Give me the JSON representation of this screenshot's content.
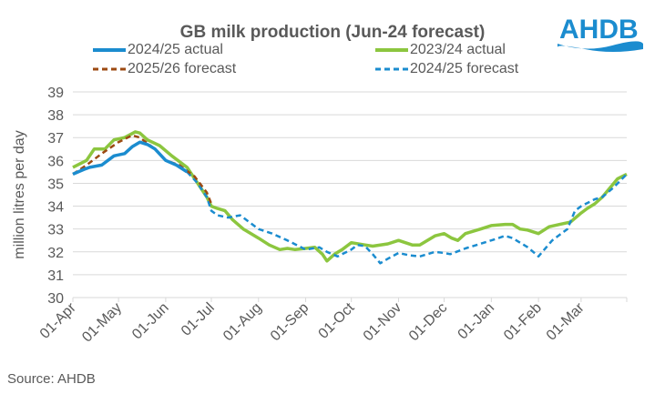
{
  "logo": {
    "text": "AHDB",
    "color": "#1b8ccf"
  },
  "source": "Source: AHDB",
  "chart_data": {
    "type": "line",
    "title": "GB milk production (Jun-24 forecast)",
    "ylabel": "million litres per day",
    "xlabel": "",
    "ylim": [
      30,
      39
    ],
    "yticks": [
      30,
      31,
      32,
      33,
      34,
      35,
      36,
      37,
      38,
      39
    ],
    "xticks": [
      "01-Apr",
      "01-May",
      "01-Jun",
      "01-Jul",
      "01-Aug",
      "01-Sep",
      "01-Oct",
      "01-Nov",
      "01-Dec",
      "01-Jan",
      "01-Feb",
      "01-Mar"
    ],
    "grid": "horizontal",
    "legend": "top",
    "series": [
      {
        "name": "2024/25 actual",
        "color": "#1b8ccf",
        "style": "solid",
        "points": [
          [
            "01-Apr",
            35.4
          ],
          [
            "08-Apr",
            35.6
          ],
          [
            "12-Apr",
            35.7
          ],
          [
            "20-Apr",
            35.8
          ],
          [
            "28-Apr",
            36.2
          ],
          [
            "05-May",
            36.3
          ],
          [
            "10-May",
            36.6
          ],
          [
            "15-May",
            36.8
          ],
          [
            "20-May",
            36.7
          ],
          [
            "25-May",
            36.5
          ],
          [
            "01-Jun",
            36.0
          ],
          [
            "08-Jun",
            35.8
          ],
          [
            "15-Jun",
            35.5
          ]
        ]
      },
      {
        "name": "2023/24 actual",
        "color": "#8cc63f",
        "style": "solid",
        "points": [
          [
            "01-Apr",
            35.7
          ],
          [
            "10-Apr",
            36.0
          ],
          [
            "15-Apr",
            36.5
          ],
          [
            "22-Apr",
            36.5
          ],
          [
            "28-Apr",
            36.9
          ],
          [
            "05-May",
            37.0
          ],
          [
            "12-May",
            37.25
          ],
          [
            "15-May",
            37.2
          ],
          [
            "20-May",
            36.9
          ],
          [
            "28-May",
            36.65
          ],
          [
            "05-Jun",
            36.2
          ],
          [
            "15-Jun",
            35.7
          ],
          [
            "22-Jun",
            35.0
          ],
          [
            "28-Jun",
            34.4
          ],
          [
            "01-Jul",
            34.0
          ],
          [
            "05-Jul",
            33.9
          ],
          [
            "10-Jul",
            33.8
          ],
          [
            "15-Jul",
            33.4
          ],
          [
            "22-Jul",
            33.0
          ],
          [
            "01-Aug",
            32.6
          ],
          [
            "08-Aug",
            32.3
          ],
          [
            "15-Aug",
            32.1
          ],
          [
            "20-Aug",
            32.15
          ],
          [
            "25-Aug",
            32.1
          ],
          [
            "01-Sep",
            32.15
          ],
          [
            "07-Sep",
            32.2
          ],
          [
            "12-Sep",
            31.9
          ],
          [
            "15-Sep",
            31.6
          ],
          [
            "20-Sep",
            31.9
          ],
          [
            "25-Sep",
            32.1
          ],
          [
            "01-Oct",
            32.4
          ],
          [
            "10-Oct",
            32.3
          ],
          [
            "15-Oct",
            32.25
          ],
          [
            "25-Oct",
            32.35
          ],
          [
            "01-Nov",
            32.5
          ],
          [
            "10-Nov",
            32.3
          ],
          [
            "15-Nov",
            32.3
          ],
          [
            "25-Nov",
            32.7
          ],
          [
            "01-Dec",
            32.8
          ],
          [
            "06-Dec",
            32.6
          ],
          [
            "10-Dec",
            32.5
          ],
          [
            "15-Dec",
            32.8
          ],
          [
            "25-Dec",
            33.0
          ],
          [
            "01-Jan",
            33.15
          ],
          [
            "10-Jan",
            33.2
          ],
          [
            "15-Jan",
            33.2
          ],
          [
            "20-Jan",
            33.0
          ],
          [
            "25-Jan",
            32.95
          ],
          [
            "01-Feb",
            32.8
          ],
          [
            "08-Feb",
            33.1
          ],
          [
            "15-Feb",
            33.2
          ],
          [
            "22-Feb",
            33.3
          ],
          [
            "01-Mar",
            33.7
          ],
          [
            "05-Mar",
            33.9
          ],
          [
            "10-Mar",
            34.1
          ],
          [
            "15-Mar",
            34.4
          ],
          [
            "20-Mar",
            34.8
          ],
          [
            "25-Mar",
            35.2
          ],
          [
            "31-Mar",
            35.4
          ]
        ]
      },
      {
        "name": "2025/26 forecast",
        "color": "#9c4a12",
        "style": "dashed",
        "points": [
          [
            "01-Apr",
            35.4
          ],
          [
            "10-Apr",
            35.8
          ],
          [
            "20-Apr",
            36.3
          ],
          [
            "01-May",
            36.8
          ],
          [
            "10-May",
            37.1
          ],
          [
            "15-May",
            37.0
          ],
          [
            "25-May",
            36.5
          ],
          [
            "01-Jun",
            36.0
          ],
          [
            "10-Jun",
            35.8
          ],
          [
            "20-Jun",
            35.3
          ],
          [
            "28-Jun",
            34.6
          ],
          [
            "01-Jul",
            34.1
          ]
        ]
      },
      {
        "name": "2024/25 forecast",
        "color": "#1b8ccf",
        "style": "dashed",
        "points": [
          [
            "15-Jun",
            35.5
          ],
          [
            "22-Jun",
            35.0
          ],
          [
            "28-Jun",
            34.4
          ],
          [
            "01-Jul",
            33.8
          ],
          [
            "05-Jul",
            33.6
          ],
          [
            "12-Jul",
            33.5
          ],
          [
            "20-Jul",
            33.6
          ],
          [
            "01-Aug",
            33.0
          ],
          [
            "10-Aug",
            32.8
          ],
          [
            "20-Aug",
            32.5
          ],
          [
            "01-Sep",
            32.1
          ],
          [
            "10-Sep",
            32.2
          ],
          [
            "15-Sep",
            32.0
          ],
          [
            "22-Sep",
            31.8
          ],
          [
            "01-Oct",
            32.1
          ],
          [
            "05-Oct",
            32.3
          ],
          [
            "10-Oct",
            32.25
          ],
          [
            "15-Oct",
            31.9
          ],
          [
            "20-Oct",
            31.5
          ],
          [
            "25-Oct",
            31.7
          ],
          [
            "01-Nov",
            31.95
          ],
          [
            "08-Nov",
            31.85
          ],
          [
            "15-Nov",
            31.8
          ],
          [
            "25-Nov",
            32.0
          ],
          [
            "01-Dec",
            31.95
          ],
          [
            "05-Dec",
            31.9
          ],
          [
            "15-Dec",
            32.15
          ],
          [
            "01-Jan",
            32.5
          ],
          [
            "10-Jan",
            32.7
          ],
          [
            "15-Jan",
            32.6
          ],
          [
            "25-Jan",
            32.2
          ],
          [
            "01-Feb",
            31.8
          ],
          [
            "10-Feb",
            32.5
          ],
          [
            "20-Feb",
            33.0
          ],
          [
            "25-Feb",
            33.8
          ],
          [
            "01-Mar",
            34.0
          ],
          [
            "10-Mar",
            34.3
          ],
          [
            "15-Mar",
            34.4
          ],
          [
            "22-Mar",
            34.8
          ],
          [
            "31-Mar",
            35.4
          ]
        ]
      }
    ]
  }
}
